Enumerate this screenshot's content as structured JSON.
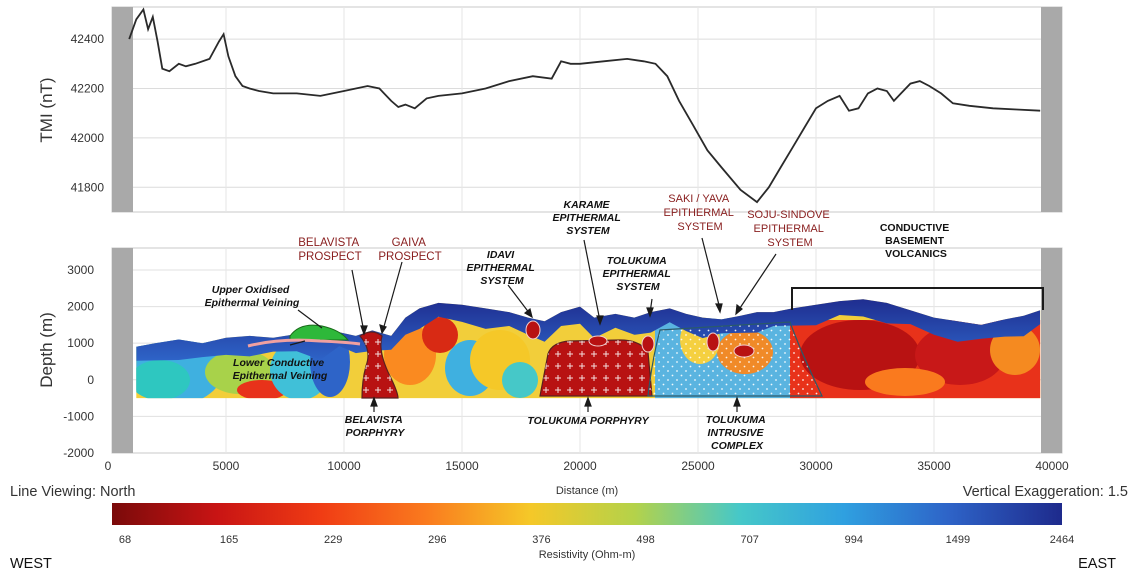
{
  "chart_data": [
    {
      "type": "line",
      "ylabel": "TMI (nT)",
      "xlim": [
        0,
        40000
      ],
      "ylim": [
        41700,
        42530
      ],
      "yticks": [
        "42400",
        "42200",
        "42000",
        "41800"
      ],
      "grid": true,
      "series": [
        {
          "x": [
            900,
            1200,
            1500,
            1700,
            1900,
            2100,
            2300,
            2600,
            3000,
            3300,
            3700,
            4300,
            4700,
            4900,
            5100,
            5400,
            5700,
            6000,
            6400,
            7000,
            7500,
            8000,
            9000,
            10000,
            10500,
            11000,
            11500,
            12000,
            12300,
            12600,
            13000,
            13500,
            14000,
            15000,
            16000,
            17000,
            18000,
            18800,
            19200,
            19600,
            20000,
            21000,
            22000,
            22700,
            23200,
            23700,
            24200,
            24800,
            25400,
            26000,
            26800,
            27500,
            28000,
            28500,
            29000,
            29500,
            30000,
            30500,
            31000,
            31400,
            31800,
            32200,
            32600,
            33000,
            33300,
            33600,
            34000,
            34400,
            34800,
            35300,
            35800,
            36500,
            37500,
            38500,
            39500
          ],
          "y": [
            42400,
            42480,
            42520,
            42440,
            42490,
            42390,
            42280,
            42270,
            42300,
            42290,
            42300,
            42320,
            42390,
            42420,
            42330,
            42250,
            42210,
            42200,
            42190,
            42180,
            42180,
            42180,
            42170,
            42190,
            42200,
            42210,
            42200,
            42150,
            42125,
            42135,
            42120,
            42160,
            42170,
            42180,
            42200,
            42230,
            42250,
            42240,
            42310,
            42300,
            42300,
            42310,
            42320,
            42310,
            42300,
            42250,
            42150,
            42050,
            41950,
            41880,
            41790,
            41740,
            41800,
            41880,
            41960,
            42040,
            42120,
            42150,
            42170,
            42110,
            42120,
            42180,
            42200,
            42190,
            42150,
            42180,
            42220,
            42230,
            42210,
            42180,
            42140,
            42130,
            42120,
            42115,
            42110
          ]
        }
      ]
    },
    {
      "type": "heatmap",
      "ylabel": "Depth (m)",
      "xlabel": "Distance (m)",
      "xlim": [
        0,
        40000
      ],
      "ylim": [
        -2000,
        3600
      ],
      "yticks": [
        "3000",
        "2000",
        "1000",
        "0",
        "-1000",
        "-2000"
      ],
      "xticks": [
        "0",
        "5000",
        "10000",
        "15000",
        "20000",
        "25000",
        "30000",
        "35000",
        "40000"
      ],
      "annotations": [
        {
          "text": [
            "BELAVISTA",
            "PROSPECT"
          ],
          "style": "maroon"
        },
        {
          "text": [
            "GAIVA",
            "PROSPECT"
          ],
          "style": "maroon"
        },
        {
          "text": [
            "Upper Oxidised",
            "Epithermal Veining"
          ],
          "style": "boldital"
        },
        {
          "text": [
            "Lower Conductive",
            "Epithermal Veining"
          ],
          "style": "boldital"
        },
        {
          "text": [
            "IDAVI",
            "EPITHERMAL",
            "SYSTEM"
          ],
          "style": "boldital"
        },
        {
          "text": [
            "KARAME",
            "EPITHERMAL",
            "SYSTEM"
          ],
          "style": "boldital"
        },
        {
          "text": [
            "TOLUKUMA",
            "EPITHERMAL",
            "SYSTEM"
          ],
          "style": "boldital"
        },
        {
          "text": [
            "SAKI / YAVA",
            "EPITHERMAL",
            "SYSTEM"
          ],
          "style": "maroon"
        },
        {
          "text": [
            "SOJU-SINDOVE",
            "EPITHERMAL",
            "SYSTEM"
          ],
          "style": "maroon"
        },
        {
          "text": [
            "CONDUCTIVE",
            "BASEMENT",
            "VOLCANICS"
          ],
          "style": "bold"
        },
        {
          "text": [
            "BELAVISTA",
            "PORPHYRY"
          ],
          "style": "boldital"
        },
        {
          "text": [
            "TOLUKUMA PORPHYRY"
          ],
          "style": "boldital"
        },
        {
          "text": [
            "TOLUKUMA",
            "INTRUSIVE",
            "COMPLEX"
          ],
          "style": "boldital"
        }
      ]
    }
  ],
  "footer": {
    "line_viewing": "Line Viewing: North",
    "distance_label": "Distance (m)",
    "vertical_exaggeration": "Vertical Exaggeration: 1.5"
  },
  "colorbar": {
    "label": "Resistivity (Ohm-m)",
    "ticks": [
      "68",
      "165",
      "229",
      "296",
      "376",
      "498",
      "707",
      "994",
      "1499",
      "2464"
    ],
    "colors": [
      "#7a0a0a",
      "#c81414",
      "#f03c14",
      "#fa7a1e",
      "#f5c828",
      "#b4d24a",
      "#46c8c8",
      "#2fa0e0",
      "#2e64c8",
      "#1e2a8c"
    ],
    "left_end": "WEST",
    "right_end": "EAST"
  }
}
